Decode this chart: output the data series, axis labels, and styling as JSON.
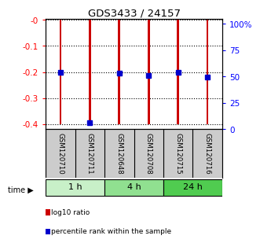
{
  "title": "GDS3433 / 24157",
  "samples": [
    "GSM120710",
    "GSM120711",
    "GSM120648",
    "GSM120708",
    "GSM120715",
    "GSM120716"
  ],
  "time_groups": [
    {
      "label": "1 h",
      "samples": [
        0,
        1
      ],
      "color": "#c8f0c8"
    },
    {
      "label": "4 h",
      "samples": [
        2,
        3
      ],
      "color": "#90e090"
    },
    {
      "label": "24 h",
      "samples": [
        4,
        5
      ],
      "color": "#50cc50"
    }
  ],
  "ylim_left": [
    -0.42,
    0.005
  ],
  "ylim_right": [
    0,
    105
  ],
  "yticks_left": [
    0.0,
    -0.1,
    -0.2,
    -0.3,
    -0.4
  ],
  "yticks_left_labels": [
    "-0",
    "-0.1",
    "-0.2",
    "-0.3",
    "-0.4"
  ],
  "yticks_right": [
    0,
    25,
    50,
    75,
    100
  ],
  "yticks_right_labels": [
    "0",
    "25",
    "50",
    "75",
    "100%"
  ],
  "red_bar_top": 0.0,
  "red_bar_bottoms": [
    -0.4,
    -0.4,
    -0.4,
    -0.4,
    -0.4,
    -0.4
  ],
  "red_bar_color": "#cc0000",
  "red_bar_width": 0.07,
  "blue_dot_values": [
    -0.2,
    -0.395,
    -0.205,
    -0.212,
    -0.2,
    -0.218
  ],
  "blue_dot_color": "#0000cc",
  "blue_dot_size": 5,
  "background_color": "#ffffff",
  "plot_bg_color": "#ffffff",
  "sample_label_bg": "#cccccc",
  "legend_items": [
    {
      "color": "#cc0000",
      "label": "log10 ratio"
    },
    {
      "color": "#0000cc",
      "label": "percentile rank within the sample"
    }
  ],
  "n_samples": 6,
  "xlim": [
    -0.5,
    5.5
  ]
}
